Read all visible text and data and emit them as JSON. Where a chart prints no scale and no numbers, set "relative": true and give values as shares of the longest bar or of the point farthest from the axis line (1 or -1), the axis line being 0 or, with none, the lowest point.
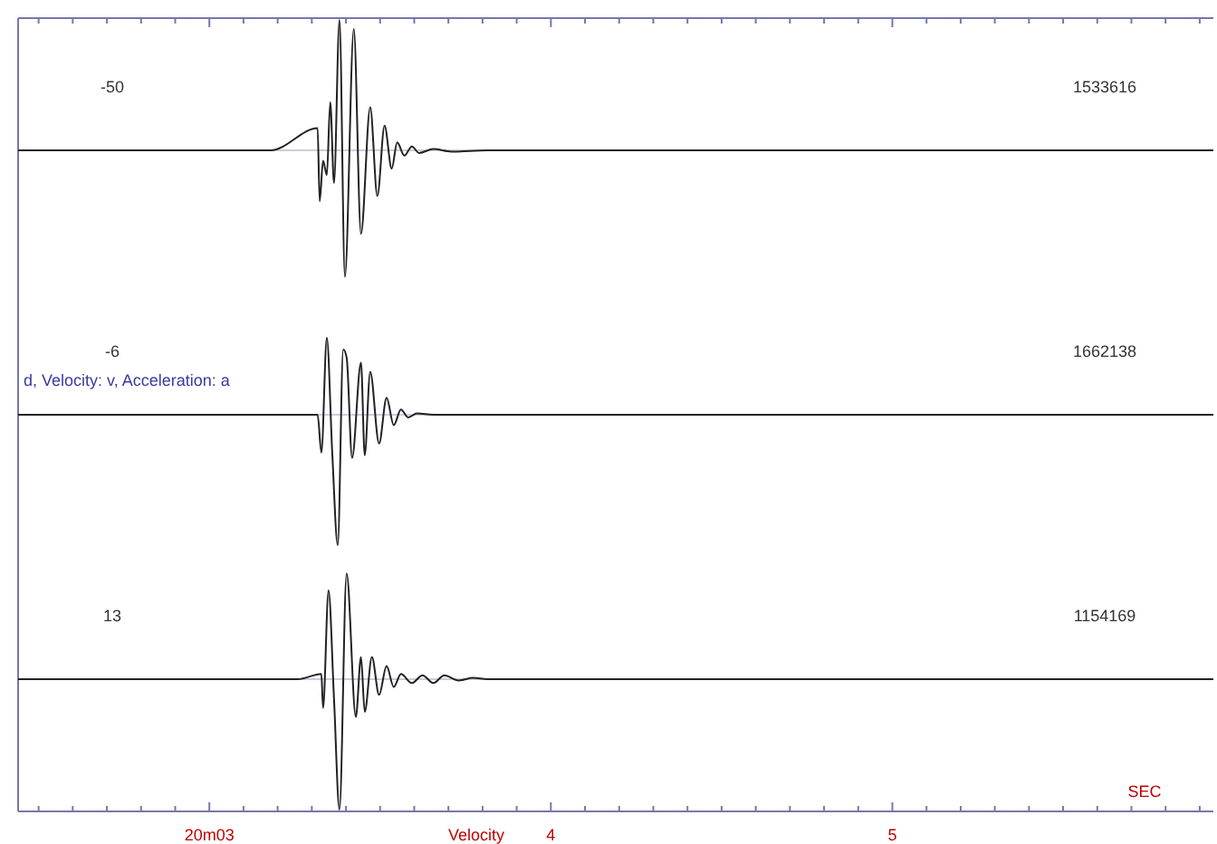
{
  "chart_data": [
    {
      "type": "line",
      "relative": true,
      "xlim": [
        2.44,
        5.94
      ],
      "tick_labels": false,
      "annotations": [
        "-50",
        "1533616"
      ],
      "series": [
        {
          "color": "#222222",
          "x": [
            2.44,
            3.18,
            3.317,
            3.323,
            3.333,
            3.344,
            3.354,
            3.365,
            3.381,
            3.397,
            3.423,
            3.444,
            3.471,
            3.492,
            3.513,
            3.534,
            3.55,
            3.571,
            3.593,
            3.614,
            3.656,
            3.709,
            3.815,
            5.94
          ],
          "values": [
            0,
            0,
            0.17,
            -0.39,
            -0.08,
            -0.19,
            0.37,
            -0.25,
            1.0,
            -0.97,
            0.93,
            -0.64,
            0.33,
            -0.35,
            0.19,
            -0.14,
            0.06,
            -0.04,
            0.03,
            -0.02,
            0.01,
            -0.01,
            0,
            0
          ]
        }
      ]
    },
    {
      "type": "line",
      "relative": true,
      "xlim": [
        2.44,
        5.94
      ],
      "tick_labels": false,
      "annotations": [
        "-6",
        "1662138",
        "d, Velocity: v, Acceleration: a"
      ],
      "series": [
        {
          "color": "#222222",
          "x": [
            2.44,
            3.317,
            3.328,
            3.344,
            3.36,
            3.376,
            3.392,
            3.402,
            3.418,
            3.444,
            3.455,
            3.471,
            3.497,
            3.519,
            3.54,
            3.561,
            3.582,
            3.608,
            3.656,
            3.709,
            5.94
          ],
          "values": [
            0,
            0,
            -0.29,
            0.59,
            -0.3,
            -1.0,
            0.5,
            0.44,
            -0.33,
            0.4,
            -0.31,
            0.33,
            -0.22,
            0.13,
            -0.08,
            0.04,
            -0.02,
            0.01,
            0,
            0,
            0
          ]
        }
      ]
    },
    {
      "type": "line",
      "relative": true,
      "xlim": [
        2.44,
        5.94
      ],
      "tick_labels": "x",
      "xticks": [
        {
          "value": 2.5,
          "label": null
        },
        {
          "value": 2.6,
          "label": null
        },
        {
          "value": 2.7,
          "label": null
        },
        {
          "value": 2.8,
          "label": null
        },
        {
          "value": 2.9,
          "label": null
        },
        {
          "value": 3.0,
          "label": "20m03"
        },
        {
          "value": 3.1,
          "label": null
        },
        {
          "value": 3.2,
          "label": null
        },
        {
          "value": 3.3,
          "label": null
        },
        {
          "value": 3.4,
          "label": null
        },
        {
          "value": 3.5,
          "label": null
        },
        {
          "value": 3.6,
          "label": null
        },
        {
          "value": 3.7,
          "label": null
        },
        {
          "value": 3.8,
          "label": null
        },
        {
          "value": 3.9,
          "label": null
        },
        {
          "value": 4.0,
          "label": "4"
        },
        {
          "value": 4.1,
          "label": null
        },
        {
          "value": 4.2,
          "label": null
        },
        {
          "value": 4.3,
          "label": null
        },
        {
          "value": 4.4,
          "label": null
        },
        {
          "value": 4.5,
          "label": null
        },
        {
          "value": 4.6,
          "label": null
        },
        {
          "value": 4.7,
          "label": null
        },
        {
          "value": 4.8,
          "label": null
        },
        {
          "value": 4.9,
          "label": null
        },
        {
          "value": 5.0,
          "label": "5"
        },
        {
          "value": 5.1,
          "label": null
        },
        {
          "value": 5.2,
          "label": null
        },
        {
          "value": 5.3,
          "label": null
        },
        {
          "value": 5.4,
          "label": null
        },
        {
          "value": 5.5,
          "label": null
        },
        {
          "value": 5.6,
          "label": null
        },
        {
          "value": 5.7,
          "label": null
        },
        {
          "value": 5.8,
          "label": null
        },
        {
          "value": 5.9,
          "label": null
        }
      ],
      "annotations": [
        "13",
        "1154169",
        "Velocity",
        "SEC"
      ],
      "series": [
        {
          "color": "#222222",
          "x": [
            2.44,
            3.259,
            3.328,
            3.333,
            3.349,
            3.365,
            3.381,
            3.402,
            3.429,
            3.444,
            3.455,
            3.476,
            3.497,
            3.519,
            3.54,
            3.561,
            3.593,
            3.624,
            3.656,
            3.688,
            3.73,
            3.772,
            3.815,
            5.94
          ],
          "values": [
            0,
            0,
            0.04,
            -0.22,
            0.68,
            -0.15,
            -1.0,
            0.81,
            -0.29,
            0.17,
            -0.25,
            0.17,
            -0.12,
            0.1,
            -0.06,
            0.04,
            -0.03,
            0.03,
            -0.03,
            0.03,
            -0.01,
            0.01,
            0,
            0
          ]
        }
      ]
    }
  ]
}
